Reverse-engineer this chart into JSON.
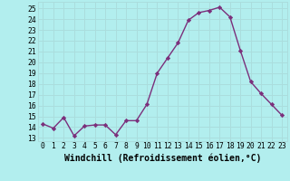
{
  "x": [
    0,
    1,
    2,
    3,
    4,
    5,
    6,
    7,
    8,
    9,
    10,
    11,
    12,
    13,
    14,
    15,
    16,
    17,
    18,
    19,
    20,
    21,
    22,
    23
  ],
  "y": [
    14.3,
    13.9,
    14.9,
    13.2,
    14.1,
    14.2,
    14.2,
    13.3,
    14.6,
    14.6,
    16.1,
    19.0,
    20.4,
    21.8,
    23.9,
    24.6,
    24.8,
    25.1,
    24.2,
    21.1,
    18.2,
    17.1,
    16.1,
    15.1
  ],
  "line_color": "#7b2f7b",
  "marker": "D",
  "marker_size": 2.2,
  "bg_color": "#b2eeee",
  "grid_color": "#aadddd",
  "xlabel": "Windchill (Refroidissement éolien,°C)",
  "ylabel_ticks": [
    13,
    14,
    15,
    16,
    17,
    18,
    19,
    20,
    21,
    22,
    23,
    24,
    25
  ],
  "ylim": [
    12.7,
    25.6
  ],
  "xlim": [
    -0.5,
    23.5
  ],
  "xticks": [
    0,
    1,
    2,
    3,
    4,
    5,
    6,
    7,
    8,
    9,
    10,
    11,
    12,
    13,
    14,
    15,
    16,
    17,
    18,
    19,
    20,
    21,
    22,
    23
  ],
  "tick_fontsize": 5.8,
  "xlabel_fontsize": 7.0,
  "linewidth": 1.0
}
